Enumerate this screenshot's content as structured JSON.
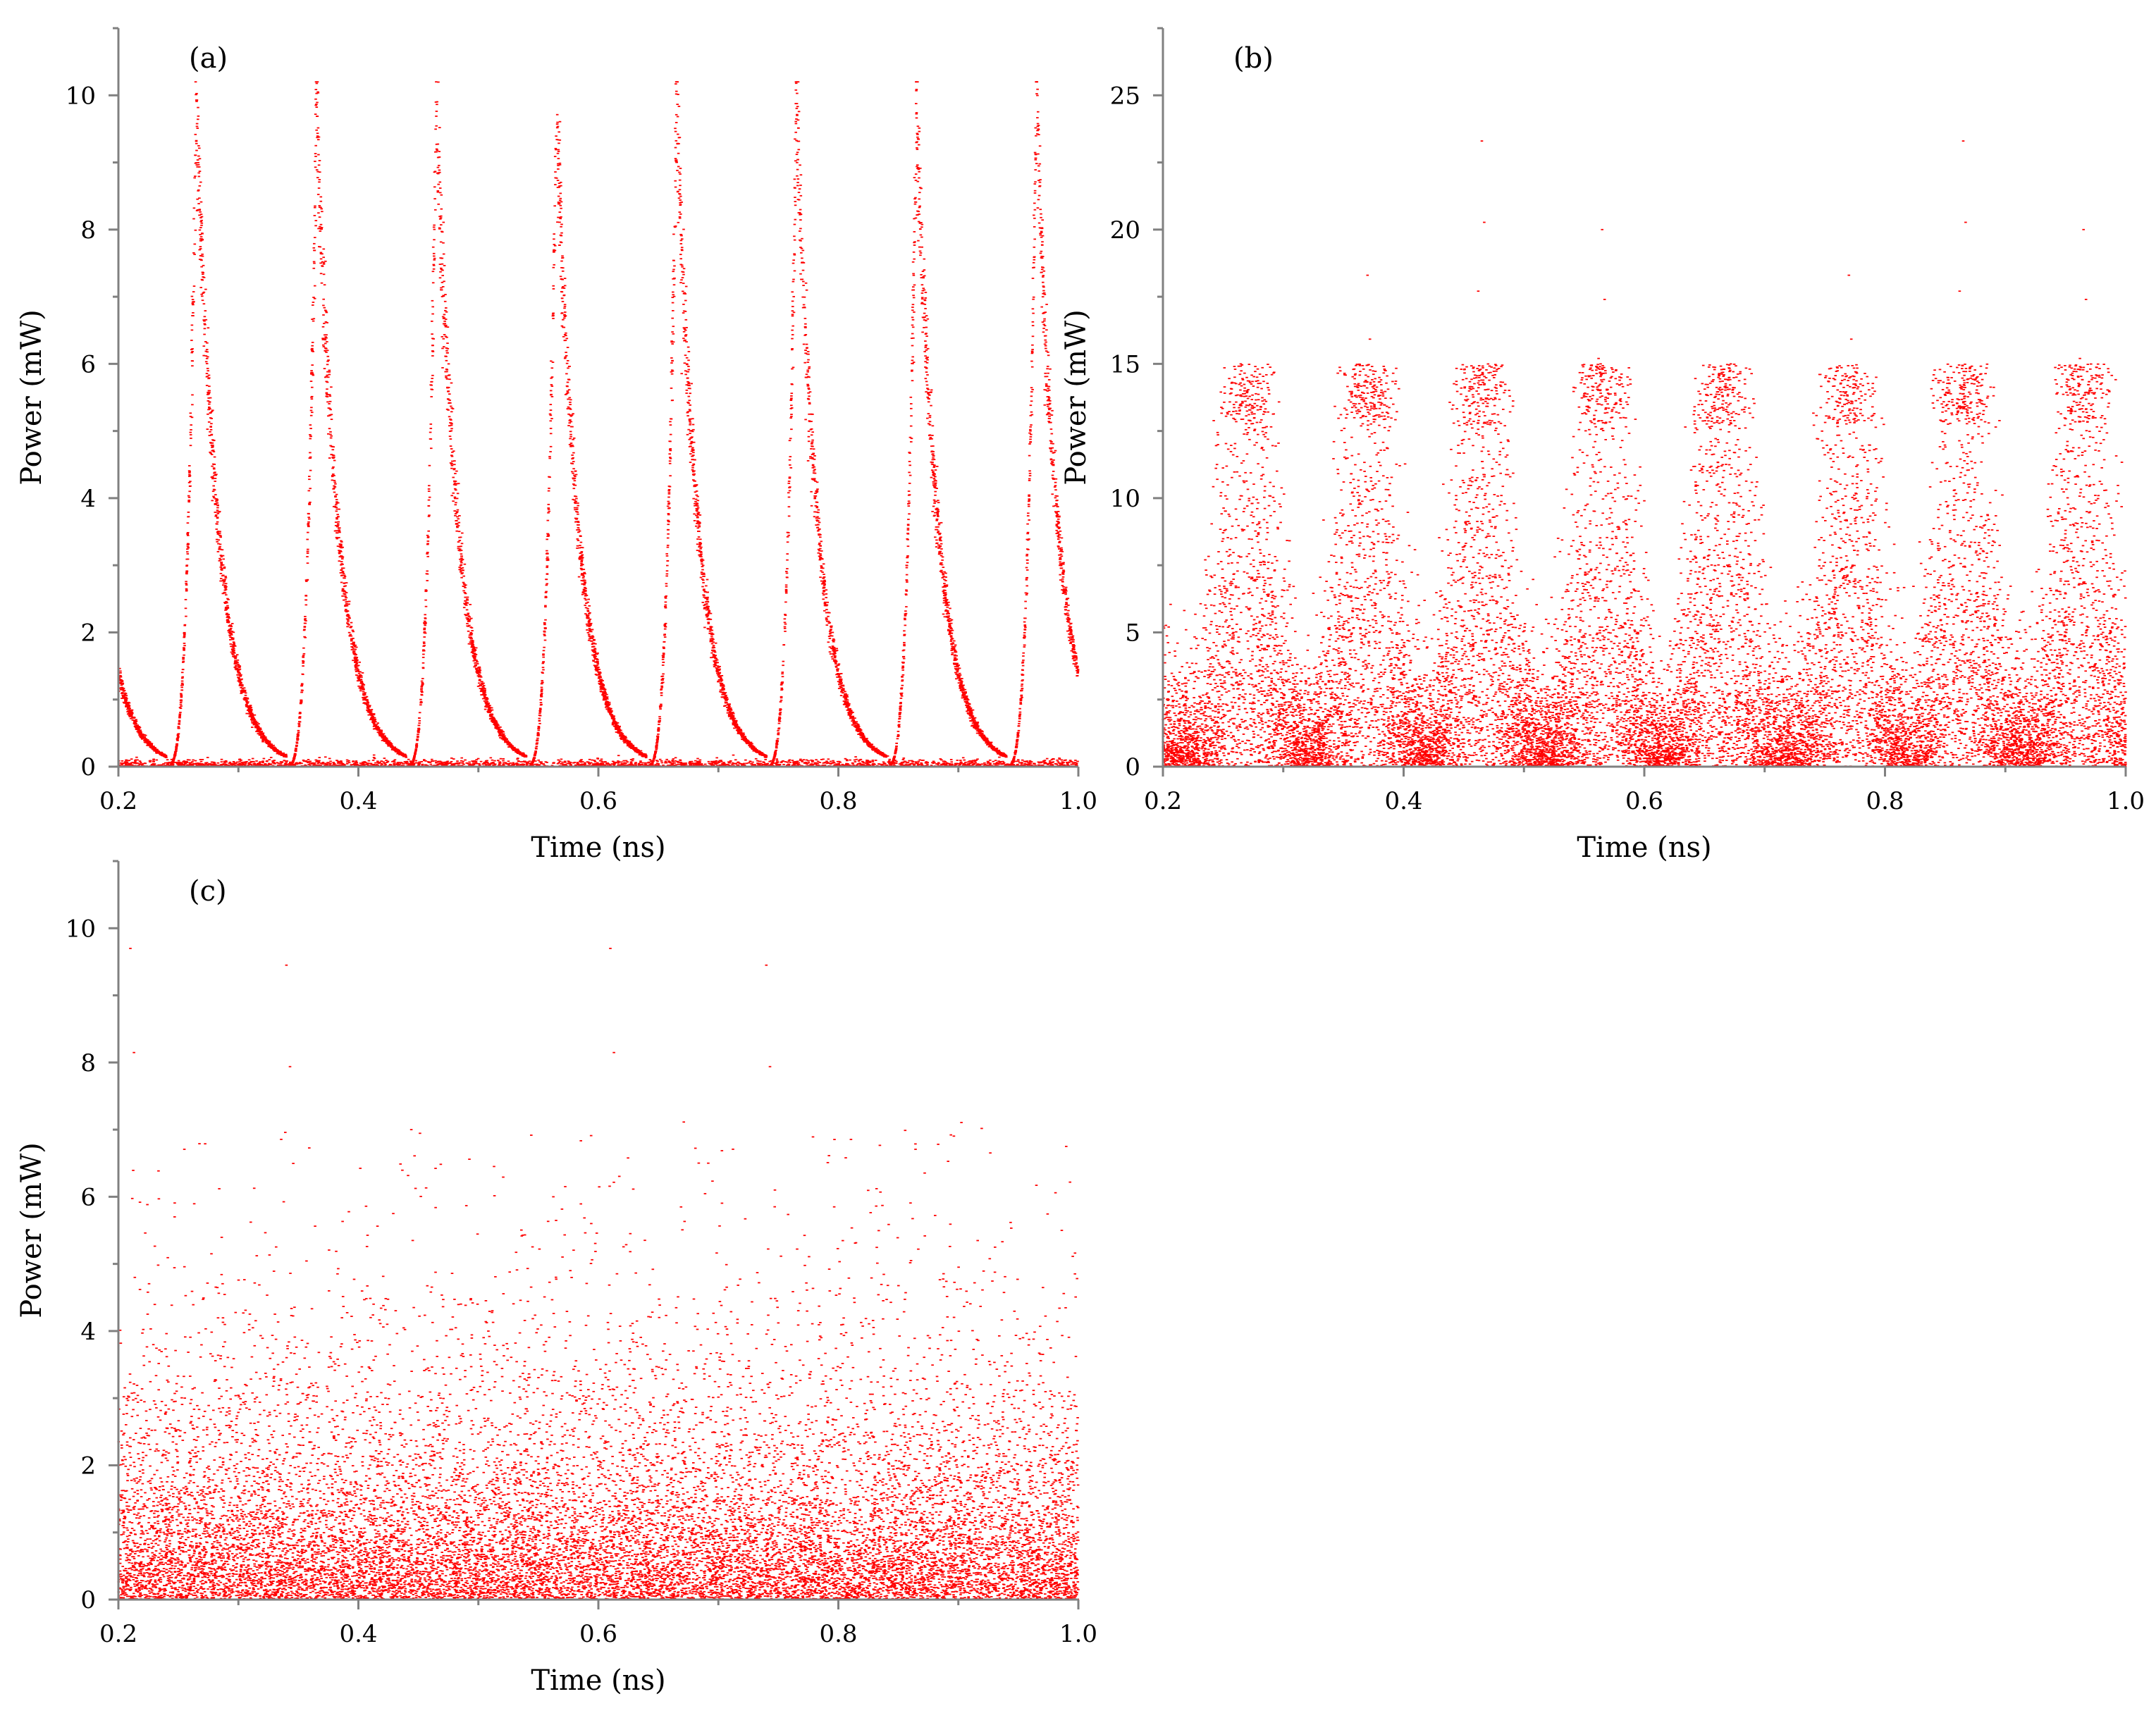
{
  "figure": {
    "colors": {
      "marker": "#ff0000",
      "axis": "#808080",
      "text": "#000000"
    }
  },
  "chart_data": [
    {
      "type": "scatter",
      "panel_label": "(a)",
      "title": "",
      "xlabel": "Time (ns)",
      "ylabel": "Power (mW)",
      "xlim": [
        0.2,
        1.0
      ],
      "ylim": [
        0,
        11
      ],
      "x_ticks": [
        0.2,
        0.4,
        0.6,
        0.8,
        1.0
      ],
      "x_tick_labels": [
        "0.2",
        "0.4",
        "0.6",
        "0.8",
        "1.0"
      ],
      "y_ticks": [
        0,
        2,
        4,
        6,
        8,
        10
      ],
      "y_tick_labels": [
        "0",
        "2",
        "4",
        "6",
        "8",
        "10"
      ],
      "grid": false,
      "legend": "none",
      "pattern": "regular-pulse-train",
      "pulse_peaks_x": [
        0.265,
        0.365,
        0.465,
        0.565,
        0.665,
        0.765,
        0.865,
        0.965
      ],
      "pulse_peaks_y": [
        9.8,
        9.8,
        10.0,
        9.6,
        9.8,
        9.8,
        10.0,
        9.6
      ],
      "series": [
        {
          "values": []
        }
      ]
    },
    {
      "type": "scatter",
      "panel_label": "(b)",
      "title": "",
      "xlabel": "Time (ns)",
      "ylabel": "Power (mW)",
      "xlim": [
        0.2,
        1.0
      ],
      "ylim": [
        0,
        27.5
      ],
      "x_ticks": [
        0.2,
        0.4,
        0.6,
        0.8,
        1.0
      ],
      "x_tick_labels": [
        "0.2",
        "0.4",
        "0.6",
        "0.8",
        "1.0"
      ],
      "y_ticks": [
        0,
        5,
        10,
        15,
        20,
        25
      ],
      "y_tick_labels": [
        "0",
        "5",
        "10",
        "15",
        "20",
        "25"
      ],
      "grid": false,
      "legend": "none",
      "pattern": "noisy-pulse-train",
      "pulse_peaks_x": [
        0.27,
        0.37,
        0.465,
        0.565,
        0.665,
        0.77,
        0.865,
        0.965
      ],
      "max_values_y": [
        14.0,
        18.3,
        23.3,
        20.0,
        13.5,
        18.3,
        23.3,
        20.0
      ],
      "series": [
        {
          "values": []
        }
      ]
    },
    {
      "type": "scatter",
      "panel_label": "(c)",
      "title": "",
      "xlabel": "Time (ns)",
      "ylabel": "Power (mW)",
      "xlim": [
        0.2,
        1.0
      ],
      "ylim": [
        0,
        11
      ],
      "x_ticks": [
        0.2,
        0.4,
        0.6,
        0.8,
        1.0
      ],
      "x_tick_labels": [
        "0.2",
        "0.4",
        "0.6",
        "0.8",
        "1.0"
      ],
      "y_ticks": [
        0,
        2,
        4,
        6,
        8,
        10
      ],
      "y_tick_labels": [
        "0",
        "2",
        "4",
        "6",
        "8",
        "10"
      ],
      "grid": false,
      "legend": "none",
      "pattern": "chaotic-noise",
      "max_values_x": [
        0.21,
        0.34,
        0.61,
        0.74
      ],
      "max_values_y": [
        9.7,
        9.45,
        9.7,
        9.45
      ],
      "series": [
        {
          "values": []
        }
      ]
    }
  ]
}
